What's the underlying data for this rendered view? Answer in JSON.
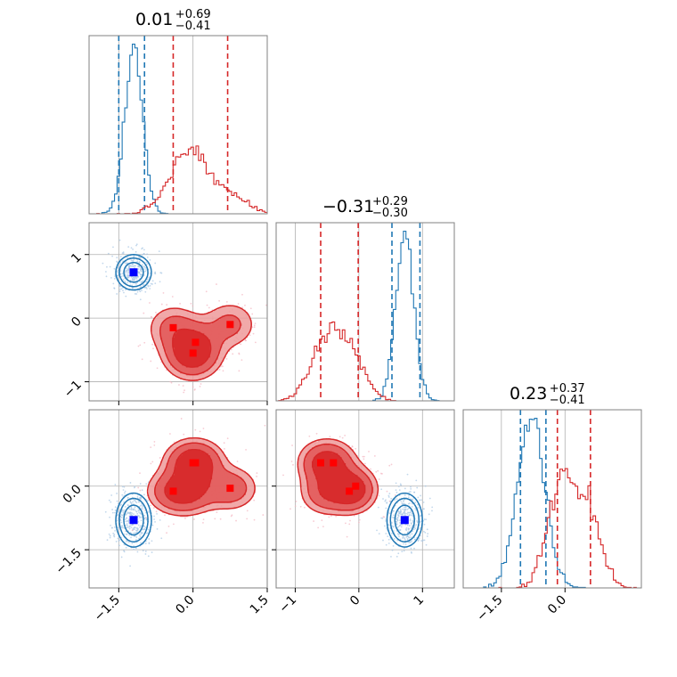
{
  "chart_data": {
    "type": "corner",
    "colors": {
      "red": "#d62728",
      "blue": "#1f77b4",
      "red_fill": "#e88a8a",
      "marker_red": "#ff0000",
      "marker_blue": "#0000ff"
    },
    "params": [
      {
        "range": [
          -2.1,
          1.5
        ],
        "ticks": [
          -1.5,
          0.0,
          1.5
        ],
        "tick_labels": [
          "−1.5",
          "0.0",
          "1.5"
        ]
      },
      {
        "range": [
          -1.3,
          1.5
        ],
        "ticks": [
          -1,
          0,
          1
        ],
        "tick_labels": [
          "−1",
          "0",
          "1"
        ]
      },
      {
        "range": [
          -2.4,
          1.8
        ],
        "ticks": [
          -1.5,
          0.0
        ],
        "tick_labels": [
          "−1.5",
          "0.0"
        ]
      }
    ],
    "titles": [
      {
        "value": "0.01",
        "plus": "+0.69",
        "minus": "−0.41"
      },
      {
        "value": "−0.31",
        "plus": "+0.29",
        "minus": "−0.30"
      },
      {
        "value": "0.23",
        "plus": "+0.37",
        "minus": "−0.41"
      }
    ],
    "series": [
      {
        "color": "blue",
        "centers": [
          [
            -1.2,
            0.72,
            -0.8
          ]
        ],
        "widths": [
          0.18,
          0.14,
          0.32
        ],
        "quantiles": [
          [
            -1.5,
            -0.98
          ],
          [
            0.52,
            0.96
          ],
          [
            -1.05,
            -0.45
          ]
        ]
      },
      {
        "color": "red",
        "centers": [
          [
            0.05,
            -0.4,
            0.55
          ],
          [
            -0.4,
            -0.15,
            -0.12
          ],
          [
            0.75,
            -0.1,
            -0.05
          ],
          [
            -0.05,
            -0.55,
            -0.15
          ],
          [
            0.0,
            -0.6,
            0.55
          ]
        ],
        "widths": [
          0.32,
          0.22,
          0.3
        ],
        "quantiles": [
          [
            -0.4,
            0.7
          ],
          [
            -0.6,
            -0.01
          ],
          [
            -0.18,
            0.6
          ]
        ]
      }
    ],
    "markers": {
      "red": [
        [
          [
            -0.4,
            -0.15
          ],
          [
            0.05,
            -0.38
          ],
          [
            0.75,
            -0.1
          ],
          [
            0.0,
            -0.55
          ]
        ],
        [
          [
            0.0,
            0.55
          ],
          [
            -0.4,
            -0.12
          ],
          [
            0.75,
            -0.05
          ],
          [
            0.05,
            0.55
          ]
        ],
        [
          [
            -0.6,
            0.55
          ],
          [
            -0.4,
            0.55
          ],
          [
            -0.05,
            -0.0
          ],
          [
            -0.15,
            -0.12
          ]
        ]
      ],
      "blue": [
        [
          [
            -1.2,
            0.72
          ]
        ],
        [
          [
            -1.2,
            -0.8
          ]
        ],
        [
          [
            0.72,
            -0.8
          ]
        ]
      ]
    }
  }
}
